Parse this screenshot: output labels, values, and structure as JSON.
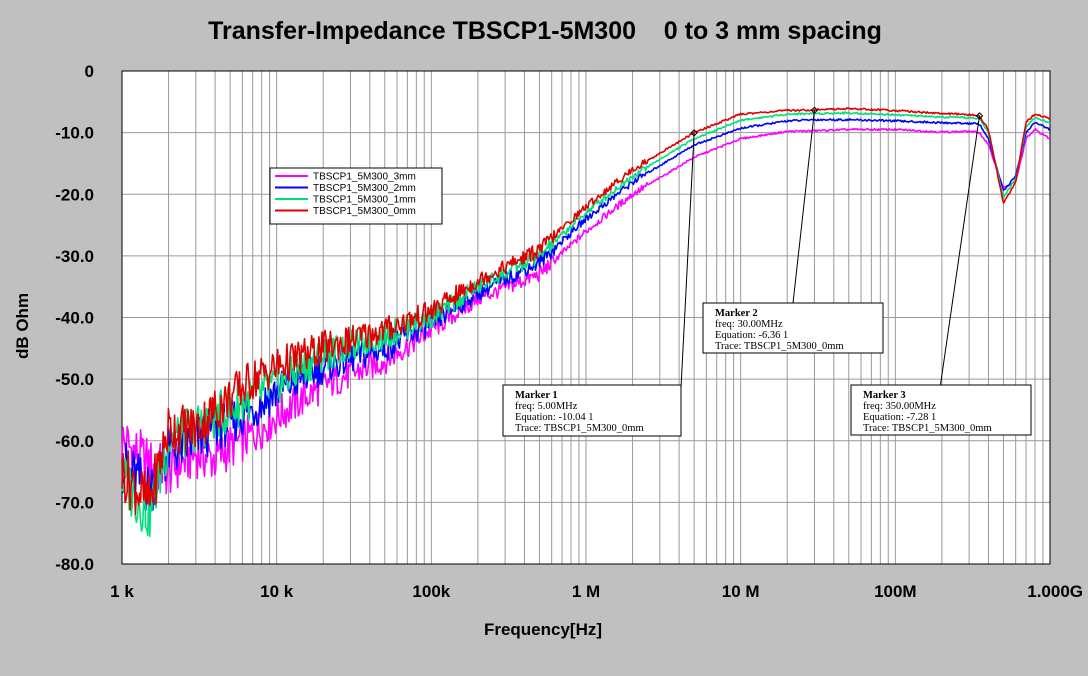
{
  "chart_data": {
    "type": "line",
    "title": "Transfer-Impedance TBSCP1-5M300    0 to 3 mm spacing",
    "xlabel": "Frequency[Hz]",
    "ylabel": "dB Ohm",
    "x_scale": "log",
    "xlim": [
      1000,
      1000000000
    ],
    "ylim": [
      -80,
      0
    ],
    "grid": true,
    "legend_position": "upper-left",
    "x_ticks": [
      {
        "value": 1000,
        "label": "1  k"
      },
      {
        "value": 10000,
        "label": "10 k"
      },
      {
        "value": 100000,
        "label": "100k"
      },
      {
        "value": 1000000,
        "label": "1  M"
      },
      {
        "value": 10000000,
        "label": "10 M"
      },
      {
        "value": 100000000,
        "label": "100M"
      },
      {
        "value": 1000000000,
        "label": "1.000G"
      }
    ],
    "y_ticks": [
      {
        "value": 0,
        "label": "0"
      },
      {
        "value": -10,
        "label": "-10.0"
      },
      {
        "value": -20,
        "label": "-20.0"
      },
      {
        "value": -30,
        "label": "-30.0"
      },
      {
        "value": -40,
        "label": "-40.0"
      },
      {
        "value": -50,
        "label": "-50.0"
      },
      {
        "value": -60,
        "label": "-60.0"
      },
      {
        "value": -70,
        "label": "-70.0"
      },
      {
        "value": -80,
        "label": "-80.0"
      }
    ],
    "series": [
      {
        "name": "TBSCP1_5M300_3mm",
        "color": "#ff00ff",
        "x": [
          1000,
          1500,
          2000,
          3000,
          4000,
          5000,
          7000,
          10000,
          20000,
          50000,
          100000,
          200000,
          500000,
          1000000,
          2000000,
          5000000,
          10000000,
          20000000,
          30000000,
          50000000,
          100000000,
          200000000,
          300000000,
          350000000,
          400000000,
          500000000,
          600000000,
          700000000,
          800000000,
          1000000000
        ],
        "y": [
          -60,
          -64,
          -65,
          -62,
          -63,
          -61,
          -59,
          -56,
          -51,
          -47,
          -42,
          -37,
          -33,
          -26,
          -20,
          -14,
          -11,
          -9.8,
          -9.7,
          -9.5,
          -9.5,
          -9.9,
          -9.8,
          -10,
          -12,
          -19,
          -18,
          -11,
          -9.5,
          -11
        ]
      },
      {
        "name": "TBSCP1_5M300_2mm",
        "color": "#0000ff",
        "x": [
          1000,
          1500,
          2000,
          3000,
          4000,
          5000,
          7000,
          10000,
          20000,
          50000,
          100000,
          200000,
          500000,
          1000000,
          2000000,
          5000000,
          10000000,
          20000000,
          30000000,
          50000000,
          100000000,
          200000000,
          300000000,
          350000000,
          400000000,
          500000000,
          600000000,
          700000000,
          800000000,
          1000000000
        ],
        "y": [
          -64,
          -68,
          -62,
          -60,
          -58,
          -57,
          -55,
          -52,
          -48,
          -45,
          -41,
          -36,
          -31,
          -24,
          -18,
          -12,
          -9.3,
          -8.1,
          -7.9,
          -7.9,
          -8.1,
          -8.4,
          -8.5,
          -8.6,
          -11,
          -19.5,
          -17,
          -10,
          -8.3,
          -9.5
        ]
      },
      {
        "name": "TBSCP1_5M300_1mm",
        "color": "#00e07a",
        "x": [
          1000,
          1500,
          2000,
          3000,
          4000,
          5000,
          7000,
          10000,
          20000,
          50000,
          100000,
          200000,
          500000,
          1000000,
          2000000,
          5000000,
          10000000,
          20000000,
          30000000,
          50000000,
          100000000,
          200000000,
          300000000,
          350000000,
          400000000,
          500000000,
          600000000,
          700000000,
          800000000,
          1000000000
        ],
        "y": [
          -66,
          -72,
          -60,
          -58,
          -56,
          -55,
          -53,
          -51,
          -46,
          -43,
          -40,
          -35,
          -30,
          -23,
          -17,
          -11,
          -8,
          -7,
          -6.9,
          -6.8,
          -7.1,
          -7.5,
          -7.6,
          -7.7,
          -10,
          -20.5,
          -17.5,
          -9,
          -7.5,
          -8.5
        ]
      },
      {
        "name": "TBSCP1_5M300_0mm",
        "color": "#e00000",
        "x": [
          1000,
          1500,
          2000,
          3000,
          4000,
          5000,
          7000,
          10000,
          20000,
          50000,
          100000,
          200000,
          500000,
          1000000,
          2000000,
          5000000,
          10000000,
          20000000,
          30000000,
          50000000,
          100000000,
          200000000,
          300000000,
          350000000,
          400000000,
          500000000,
          600000000,
          700000000,
          800000000,
          1000000000
        ],
        "y": [
          -65,
          -70,
          -58,
          -58,
          -55,
          -53,
          -50,
          -48,
          -45,
          -42,
          -39,
          -34,
          -29,
          -22,
          -16,
          -10,
          -7,
          -6.4,
          -6.3,
          -6.1,
          -6.4,
          -6.9,
          -7.1,
          -7.3,
          -9.5,
          -21.5,
          -18,
          -8.3,
          -7,
          -7.7
        ]
      }
    ],
    "markers": [
      {
        "title": "Marker 1",
        "freq": "freq: 5.00MHz",
        "equation": "Equation: -10.04 1",
        "trace": "Trace: TBSCP1_5M300_0mm",
        "x": 5000000,
        "y": -10.04
      },
      {
        "title": "Marker 2",
        "freq": "freq: 30.00MHz",
        "equation": "Equation: -6.36 1",
        "trace": "Trace: TBSCP1_5M300_0mm",
        "x": 30000000,
        "y": -6.36
      },
      {
        "title": "Marker 3",
        "freq": "freq: 350.00MHz",
        "equation": "Equation: -7.28 1",
        "trace": "Trace: TBSCP1_5M300_0mm",
        "x": 350000000,
        "y": -7.28
      }
    ]
  }
}
